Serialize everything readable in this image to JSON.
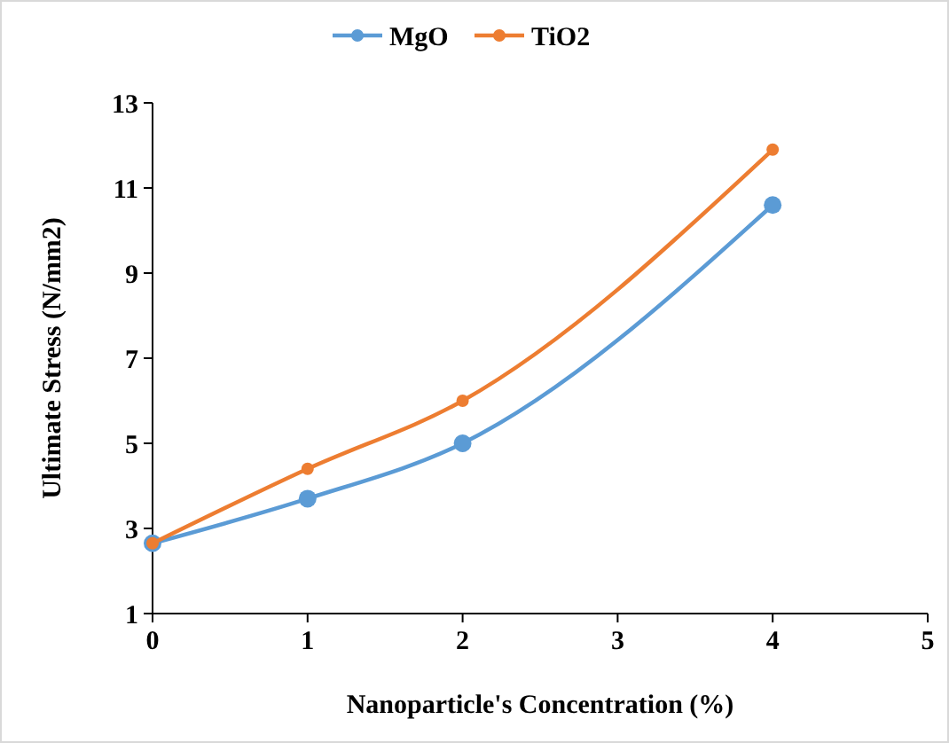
{
  "chart_data": {
    "type": "line",
    "xlabel": "Nanoparticle's Concentration (%)",
    "ylabel": "Ultimate Stress (N/mm2)",
    "x": [
      0,
      1,
      2,
      4
    ],
    "series": [
      {
        "name": "MgO",
        "color": "#5b9bd5",
        "values": [
          2.65,
          3.7,
          5.0,
          10.6
        ]
      },
      {
        "name": "TiO2",
        "color": "#ed7d31",
        "values": [
          2.65,
          4.4,
          6.0,
          11.9
        ]
      }
    ],
    "xlim": [
      0,
      5
    ],
    "xticks": [
      0,
      1,
      2,
      3,
      4,
      5
    ],
    "ylim": [
      1,
      13
    ],
    "yticks": [
      1,
      3,
      5,
      7,
      9,
      11,
      13
    ],
    "grid": false,
    "legend": "top",
    "marker": "circle",
    "line_style": "solid"
  }
}
